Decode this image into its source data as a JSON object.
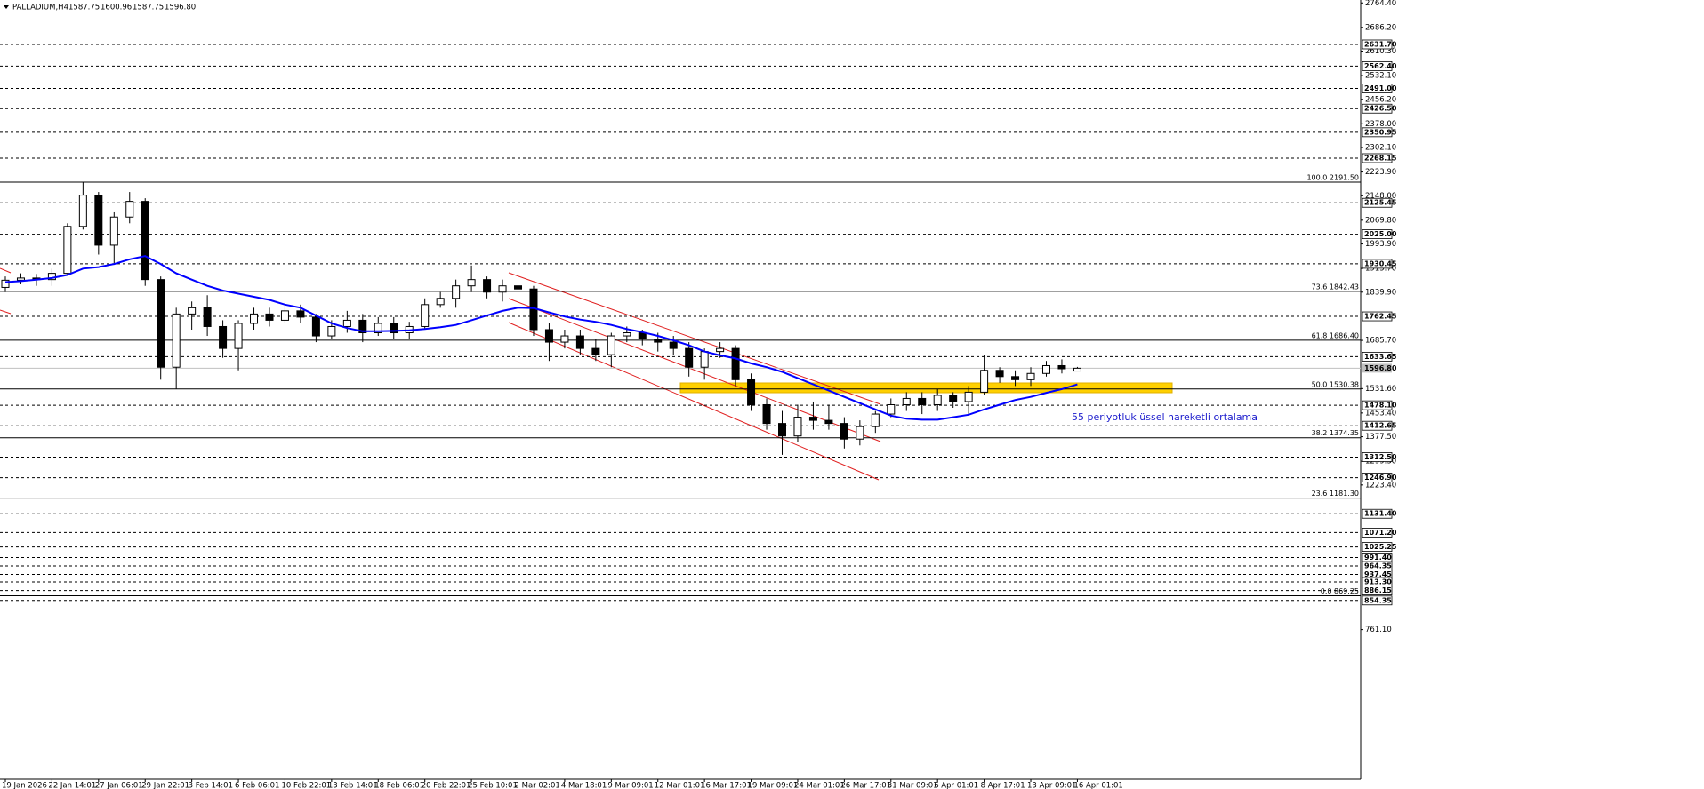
{
  "chart_data": {
    "type": "candlestick",
    "symbol": "PALLADIUM,H4",
    "quote": [
      "1587.75",
      "1600.96",
      "1587.75",
      "1596.80"
    ],
    "categories": [
      "19 Jan 2026",
      null,
      null,
      "22 Jan 14:01",
      null,
      null,
      "27 Jan 06:01",
      null,
      null,
      "29 Jan 22:01",
      null,
      null,
      "3 Feb 14:01",
      null,
      null,
      "6 Feb 06:01",
      null,
      null,
      "10 Feb 22:01",
      null,
      null,
      "13 Feb 14:01",
      null,
      null,
      "18 Feb 06:01",
      null,
      null,
      "20 Feb 22:01",
      null,
      null,
      "25 Feb 10:01",
      null,
      null,
      "2 Mar 02:01",
      null,
      null,
      "4 Mar 18:01",
      null,
      null,
      "9 Mar 09:01",
      null,
      null,
      "12 Mar 01:01",
      null,
      null,
      "16 Mar 17:01",
      null,
      null,
      "19 Mar 09:01",
      null,
      null,
      "24 Mar 01:01",
      null,
      null,
      "26 Mar 17:01",
      null,
      null,
      "31 Mar 09:01",
      null,
      null,
      "6 Apr 01:01",
      null,
      null,
      "8 Apr 17:01",
      null,
      null,
      "13 Apr 09:01",
      null,
      null,
      "16 Apr 01:01"
    ],
    "open": [
      1855,
      1878,
      1885,
      1880,
      1900,
      2050,
      2150,
      1990,
      2080,
      2130,
      1880,
      1600,
      1770,
      1790,
      1730,
      1660,
      1740,
      1770,
      1750,
      1780,
      1760,
      1700,
      1730,
      1750,
      1710,
      1740,
      1710,
      1730,
      1800,
      1820,
      1860,
      1880,
      1840,
      1860,
      1850,
      1720,
      1680,
      1700,
      1660,
      1640,
      1700,
      1710,
      1690,
      1680,
      1660,
      1600,
      1650,
      1660,
      1560,
      1480,
      1420,
      1380,
      1440,
      1430,
      1420,
      1370,
      1410,
      1450,
      1480,
      1500,
      1480,
      1510,
      1490,
      1520,
      1590,
      1570,
      1560,
      1580,
      1605,
      1587.75
    ],
    "high": [
      1890,
      1900,
      1898,
      1915,
      2060,
      2190,
      2160,
      2095,
      2160,
      2140,
      1890,
      1790,
      1810,
      1830,
      1750,
      1750,
      1790,
      1790,
      1800,
      1800,
      1770,
      1750,
      1780,
      1770,
      1760,
      1760,
      1745,
      1820,
      1840,
      1880,
      1925,
      1890,
      1880,
      1880,
      1860,
      1740,
      1720,
      1720,
      1690,
      1710,
      1730,
      1720,
      1710,
      1700,
      1680,
      1660,
      1680,
      1670,
      1580,
      1500,
      1460,
      1480,
      1490,
      1480,
      1440,
      1430,
      1460,
      1500,
      1520,
      1520,
      1530,
      1520,
      1540,
      1640,
      1600,
      1590,
      1600,
      1620,
      1625,
      1600.96
    ],
    "low": [
      1840,
      1865,
      1860,
      1860,
      1895,
      2040,
      1960,
      1930,
      2060,
      1860,
      1560,
      1530,
      1720,
      1700,
      1630,
      1590,
      1720,
      1730,
      1740,
      1740,
      1680,
      1690,
      1710,
      1680,
      1700,
      1690,
      1690,
      1720,
      1790,
      1790,
      1840,
      1820,
      1810,
      1820,
      1700,
      1620,
      1660,
      1640,
      1620,
      1600,
      1680,
      1670,
      1650,
      1640,
      1570,
      1560,
      1630,
      1540,
      1460,
      1400,
      1320,
      1360,
      1400,
      1400,
      1340,
      1350,
      1390,
      1440,
      1460,
      1450,
      1460,
      1470,
      1450,
      1510,
      1550,
      1540,
      1540,
      1570,
      1580,
      1587.75
    ],
    "close": [
      1878,
      1885,
      1880,
      1900,
      2050,
      2150,
      1990,
      2080,
      2130,
      1880,
      1600,
      1770,
      1790,
      1730,
      1660,
      1740,
      1770,
      1750,
      1780,
      1760,
      1700,
      1730,
      1750,
      1710,
      1740,
      1710,
      1730,
      1800,
      1820,
      1860,
      1880,
      1840,
      1860,
      1850,
      1720,
      1680,
      1700,
      1660,
      1640,
      1700,
      1710,
      1690,
      1680,
      1660,
      1600,
      1650,
      1660,
      1560,
      1480,
      1420,
      1380,
      1440,
      1430,
      1420,
      1370,
      1410,
      1450,
      1480,
      1500,
      1480,
      1510,
      1490,
      1520,
      1590,
      1570,
      1560,
      1580,
      1605,
      1595,
      1596.8
    ],
    "ema": {
      "color": "#0000ff",
      "values": [
        1872,
        1875,
        1880,
        1885,
        1895,
        1915,
        1920,
        1930,
        1945,
        1955,
        1930,
        1900,
        1880,
        1860,
        1845,
        1835,
        1825,
        1815,
        1800,
        1790,
        1765,
        1740,
        1725,
        1715,
        1715,
        1716,
        1718,
        1722,
        1728,
        1735,
        1750,
        1765,
        1780,
        1790,
        1789,
        1775,
        1762,
        1752,
        1745,
        1735,
        1722,
        1712,
        1700,
        1686,
        1670,
        1650,
        1638,
        1628,
        1612,
        1600,
        1585,
        1565,
        1545,
        1525,
        1505,
        1485,
        1465,
        1445,
        1435,
        1432,
        1432,
        1440,
        1448,
        1465,
        1480,
        1495,
        1505,
        1518,
        1530,
        1545
      ]
    },
    "annotation": "55 periyotluk üssel hareketli ortalama",
    "ylim": [
      280,
      2768
    ],
    "yticks": [
      {
        "value": 2764.4,
        "label": "2764.40"
      },
      {
        "value": 2686.2,
        "label": "2686.20"
      },
      {
        "value": 2610.3,
        "label": "2610.30"
      },
      {
        "value": 2532.1,
        "label": "2532.10"
      },
      {
        "value": 2456.2,
        "label": "2456.20"
      },
      {
        "value": 2378,
        "label": "2378.00"
      },
      {
        "value": 2302.1,
        "label": "2302.10"
      },
      {
        "value": 2223.9,
        "label": "2223.90"
      },
      {
        "value": 2148,
        "label": "2148.00"
      },
      {
        "value": 2069.8,
        "label": "2069.80"
      },
      {
        "value": 1993.9,
        "label": "1993.90"
      },
      {
        "value": 1915.7,
        "label": "1915.70"
      },
      {
        "value": 1839.9,
        "label": "1839.90"
      },
      {
        "value": 1685.7,
        "label": "1685.70"
      },
      {
        "value": 1531.6,
        "label": "1531.60"
      },
      {
        "value": 1453.4,
        "label": "1453.40"
      },
      {
        "value": 1377.5,
        "label": "1377.50"
      },
      {
        "value": 1299.3,
        "label": "1299.30"
      },
      {
        "value": 1223.4,
        "label": "1223.40"
      },
      {
        "value": 761.1,
        "label": "761.10"
      }
    ],
    "levels": [
      {
        "value": 2631.7,
        "label": "2631.70"
      },
      {
        "value": 2562.4,
        "label": "2562.40"
      },
      {
        "value": 2491,
        "label": "2491.00"
      },
      {
        "value": 2426.5,
        "label": "2426.50"
      },
      2350.95,
      2268.15,
      2125.45,
      {
        "value": 2025,
        "label": "2025.00"
      },
      1930.45,
      1762.45,
      1633.65,
      {
        "value": 1478.1,
        "label": "1478.10"
      },
      1412.65,
      {
        "value": 1312.5,
        "label": "1312.50"
      },
      {
        "value": 1246.9,
        "label": "1246.90"
      },
      {
        "value": 1131.4,
        "label": "1131.40"
      },
      {
        "value": 1071.2,
        "label": "1071.20"
      },
      1025.25,
      {
        "value": 991.4,
        "label": "991.40"
      },
      964.35,
      937.45,
      {
        "value": 913.3,
        "label": "913.30"
      },
      886.15,
      854.35
    ],
    "current_price": {
      "value": 1596.8,
      "label": "1596.80"
    },
    "fibonacci": [
      {
        "value": 2191.5,
        "label": "100.0 2191.50"
      },
      {
        "value": 1842.43,
        "label": "73.6 1842.43"
      },
      {
        "value": 1686.4,
        "label": "61.8 1686.40"
      },
      {
        "value": 1530.38,
        "label": "50.0 1530.38"
      },
      {
        "value": 1374.35,
        "label": "38.2 1374.35"
      },
      {
        "value": 1181.3,
        "label": "23.6 1181.30"
      },
      {
        "value": 869.25,
        "label": "0.0 869.25"
      }
    ]
  }
}
